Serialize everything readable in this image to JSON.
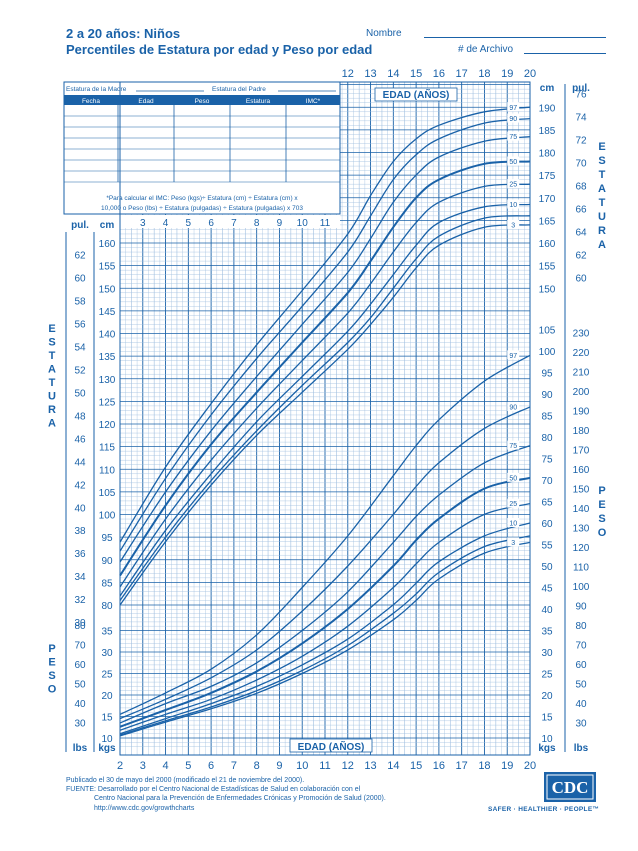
{
  "header": {
    "title_line1": "2 a 20 años: Niños",
    "title_line2": "Percentiles de Estatura por edad y Peso por edad",
    "name_label": "Nombre",
    "record_label": "# de Archivo"
  },
  "record_table": {
    "mother_height_label": "Estatura de la Madre",
    "father_height_label": "Estatura del Padre",
    "columns": [
      "Fecha",
      "Edad",
      "Peso",
      "Estatura",
      "IMC*"
    ],
    "bmi_note_line1": "*Para calcular el IMC: Peso (kgs)÷ Estatura (cm) ÷ Estatura (cm) x",
    "bmi_note_line2": "10,000 o Peso (lbs) ÷ Estatura (pulgadas) ÷ Estatura (pulgadas) x 703"
  },
  "colors": {
    "chart_blue": "#1a62a8",
    "grid_light": "#9fbfe0"
  },
  "chart_data": {
    "type": "line",
    "x_label_top": "EDAD (AÑOS)",
    "x_label_bottom": "EDAD (AÑOS)",
    "x_ticks_top": [
      12,
      13,
      14,
      15,
      16,
      17,
      18,
      19,
      20
    ],
    "x_ticks_bottom": [
      2,
      3,
      4,
      5,
      6,
      7,
      8,
      9,
      10,
      11,
      12,
      13,
      14,
      15,
      16,
      17,
      18,
      19,
      20
    ],
    "x_ticks_inset": [
      3,
      4,
      5,
      6,
      7,
      8,
      9,
      10,
      11
    ],
    "xlim": [
      2,
      20
    ],
    "stature_axis": {
      "left_title": "ESTATURA",
      "right_title": "ESTATURA",
      "cm_unit": "cm",
      "in_unit": "pul.",
      "cm_ticks_left": [
        80,
        85,
        90,
        95,
        100,
        105,
        110,
        115,
        120,
        125,
        130,
        135,
        140,
        145,
        150,
        155,
        160
      ],
      "in_ticks_left": [
        30,
        32,
        34,
        36,
        38,
        40,
        42,
        44,
        46,
        48,
        50,
        52,
        54,
        56,
        58,
        60,
        62
      ],
      "cm_ticks_right": [
        150,
        155,
        160,
        165,
        170,
        175,
        180,
        185,
        190
      ],
      "in_ticks_right": [
        60,
        62,
        64,
        66,
        68,
        70,
        72,
        74,
        76
      ],
      "ylim_cm": [
        75,
        197
      ]
    },
    "weight_axis": {
      "left_title": "PESO",
      "right_title": "PESO",
      "kg_unit": "kgs",
      "lb_unit": "lbs",
      "kg_ticks_left": [
        10,
        15,
        20,
        25,
        30,
        35
      ],
      "lb_ticks_left": [
        30,
        40,
        50,
        60,
        70,
        80
      ],
      "kg_ticks_right": [
        10,
        15,
        20,
        25,
        30,
        35,
        40,
        45,
        50,
        55,
        60,
        65,
        70,
        75,
        80,
        85,
        90,
        95,
        100,
        105
      ],
      "lb_ticks_right": [
        30,
        40,
        50,
        60,
        70,
        80,
        90,
        100,
        110,
        120,
        130,
        140,
        150,
        160,
        170,
        180,
        190,
        200,
        210,
        220,
        230
      ],
      "ylim_kg": [
        8,
        108
      ]
    },
    "stature_series": [
      {
        "name": "97",
        "values": [
          [
            2,
            93.9
          ],
          [
            4,
            110.5
          ],
          [
            6,
            124.5
          ],
          [
            8,
            137.5
          ],
          [
            10,
            149.5
          ],
          [
            12,
            162
          ],
          [
            13,
            170.5
          ],
          [
            14,
            178
          ],
          [
            15,
            183
          ],
          [
            16,
            186
          ],
          [
            18,
            189
          ],
          [
            20,
            190
          ]
        ]
      },
      {
        "name": "90",
        "values": [
          [
            2,
            91.9
          ],
          [
            4,
            108
          ],
          [
            6,
            122
          ],
          [
            8,
            134.5
          ],
          [
            10,
            146
          ],
          [
            12,
            158
          ],
          [
            13,
            166
          ],
          [
            14,
            174
          ],
          [
            15,
            179.5
          ],
          [
            16,
            183
          ],
          [
            18,
            186.5
          ],
          [
            20,
            187.5
          ]
        ]
      },
      {
        "name": "75",
        "values": [
          [
            2,
            89.5
          ],
          [
            4,
            105
          ],
          [
            6,
            118.5
          ],
          [
            8,
            130.5
          ],
          [
            10,
            142
          ],
          [
            12,
            153.5
          ],
          [
            13,
            161
          ],
          [
            14,
            169
          ],
          [
            15,
            175
          ],
          [
            16,
            179
          ],
          [
            18,
            182.5
          ],
          [
            20,
            183.5
          ]
        ]
      },
      {
        "name": "50",
        "values": [
          [
            2,
            86.5
          ],
          [
            4,
            102
          ],
          [
            6,
            115.5
          ],
          [
            8,
            127
          ],
          [
            10,
            138
          ],
          [
            12,
            149
          ],
          [
            13,
            156
          ],
          [
            14,
            163.5
          ],
          [
            15,
            170
          ],
          [
            16,
            174
          ],
          [
            18,
            177.5
          ],
          [
            20,
            178
          ]
        ]
      },
      {
        "name": "25",
        "values": [
          [
            2,
            84
          ],
          [
            4,
            99
          ],
          [
            6,
            112
          ],
          [
            8,
            123.5
          ],
          [
            10,
            134
          ],
          [
            12,
            144.5
          ],
          [
            13,
            151
          ],
          [
            14,
            158
          ],
          [
            15,
            164.5
          ],
          [
            16,
            169
          ],
          [
            18,
            172.5
          ],
          [
            20,
            173
          ]
        ]
      },
      {
        "name": "10",
        "values": [
          [
            2,
            82
          ],
          [
            4,
            96.5
          ],
          [
            6,
            109
          ],
          [
            8,
            120.5
          ],
          [
            10,
            130.5
          ],
          [
            12,
            140.5
          ],
          [
            13,
            146.5
          ],
          [
            14,
            153
          ],
          [
            15,
            159.5
          ],
          [
            16,
            164.5
          ],
          [
            18,
            168
          ],
          [
            20,
            168.5
          ]
        ]
      },
      {
        "name": "5",
        "values": [
          [
            2,
            81
          ],
          [
            4,
            95
          ],
          [
            6,
            107.5
          ],
          [
            8,
            118.5
          ],
          [
            10,
            128.5
          ],
          [
            12,
            138
          ],
          [
            13,
            143.5
          ],
          [
            14,
            150
          ],
          [
            15,
            156.5
          ],
          [
            16,
            161.5
          ],
          [
            18,
            165.5
          ],
          [
            20,
            166
          ]
        ]
      },
      {
        "name": "3",
        "values": [
          [
            2,
            80
          ],
          [
            4,
            94
          ],
          [
            6,
            106.5
          ],
          [
            8,
            117.5
          ],
          [
            10,
            127
          ],
          [
            12,
            136.5
          ],
          [
            13,
            142
          ],
          [
            14,
            148
          ],
          [
            15,
            154.5
          ],
          [
            16,
            159.5
          ],
          [
            18,
            163.5
          ],
          [
            20,
            164
          ]
        ]
      }
    ],
    "weight_series": [
      {
        "name": "97",
        "values": [
          [
            2,
            15.5
          ],
          [
            4,
            20.5
          ],
          [
            6,
            26
          ],
          [
            8,
            34
          ],
          [
            10,
            45
          ],
          [
            12,
            57
          ],
          [
            14,
            71
          ],
          [
            15,
            78
          ],
          [
            16,
            84
          ],
          [
            18,
            93
          ],
          [
            20,
            99
          ]
        ]
      },
      {
        "name": "90",
        "values": [
          [
            2,
            14.5
          ],
          [
            4,
            19
          ],
          [
            6,
            24
          ],
          [
            8,
            30.5
          ],
          [
            10,
            39.5
          ],
          [
            12,
            50
          ],
          [
            14,
            62
          ],
          [
            15,
            68.5
          ],
          [
            16,
            74
          ],
          [
            18,
            82
          ],
          [
            20,
            87
          ]
        ]
      },
      {
        "name": "75",
        "values": [
          [
            2,
            13.5
          ],
          [
            4,
            18
          ],
          [
            6,
            22
          ],
          [
            8,
            27.5
          ],
          [
            10,
            35
          ],
          [
            12,
            44
          ],
          [
            14,
            55.5
          ],
          [
            15,
            61.5
          ],
          [
            16,
            66.5
          ],
          [
            18,
            74
          ],
          [
            20,
            78
          ]
        ]
      },
      {
        "name": "50",
        "values": [
          [
            2,
            12.6
          ],
          [
            4,
            16.5
          ],
          [
            6,
            20.5
          ],
          [
            8,
            25.5
          ],
          [
            10,
            32
          ],
          [
            12,
            40
          ],
          [
            14,
            50
          ],
          [
            15,
            56
          ],
          [
            16,
            61
          ],
          [
            18,
            68
          ],
          [
            20,
            70.5
          ]
        ]
      },
      {
        "name": "25",
        "values": [
          [
            2,
            11.8
          ],
          [
            4,
            15.5
          ],
          [
            6,
            19
          ],
          [
            8,
            23.5
          ],
          [
            10,
            29
          ],
          [
            12,
            36
          ],
          [
            14,
            45
          ],
          [
            15,
            50.5
          ],
          [
            16,
            55.5
          ],
          [
            18,
            62
          ],
          [
            20,
            64.5
          ]
        ]
      },
      {
        "name": "10",
        "values": [
          [
            2,
            11
          ],
          [
            4,
            14.5
          ],
          [
            6,
            18
          ],
          [
            8,
            22
          ],
          [
            10,
            27
          ],
          [
            12,
            33
          ],
          [
            14,
            41
          ],
          [
            15,
            46
          ],
          [
            16,
            51
          ],
          [
            18,
            57
          ],
          [
            20,
            60
          ]
        ]
      },
      {
        "name": "5",
        "values": [
          [
            2,
            10.7
          ],
          [
            4,
            14
          ],
          [
            6,
            17.2
          ],
          [
            8,
            21
          ],
          [
            10,
            25.7
          ],
          [
            12,
            31.5
          ],
          [
            14,
            39
          ],
          [
            15,
            43.5
          ],
          [
            16,
            48.5
          ],
          [
            18,
            54.5
          ],
          [
            20,
            57
          ]
        ]
      },
      {
        "name": "3",
        "values": [
          [
            2,
            10.5
          ],
          [
            4,
            13.7
          ],
          [
            6,
            16.8
          ],
          [
            8,
            20.4
          ],
          [
            10,
            25
          ],
          [
            12,
            30.5
          ],
          [
            14,
            37.5
          ],
          [
            15,
            42
          ],
          [
            16,
            47
          ],
          [
            18,
            53
          ],
          [
            20,
            55.5
          ]
        ]
      }
    ]
  },
  "footer": {
    "line1": "Publicado el 30 de mayo del 2000 (modificado el 21 de noviembre del 2000).",
    "line2": "FUENTE: Desarrollado por el Centro Nacional de Estadísticas de Salud en colaboración con el",
    "line3": "Centro Nacional para la Prevención de Enfermedades Crónicas y Promoción de Salud (2000).",
    "line4": "http://www.cdc.gov/growthcharts",
    "logo_text": "CDC",
    "slogan": "SAFER · HEALTHIER · PEOPLE™"
  }
}
